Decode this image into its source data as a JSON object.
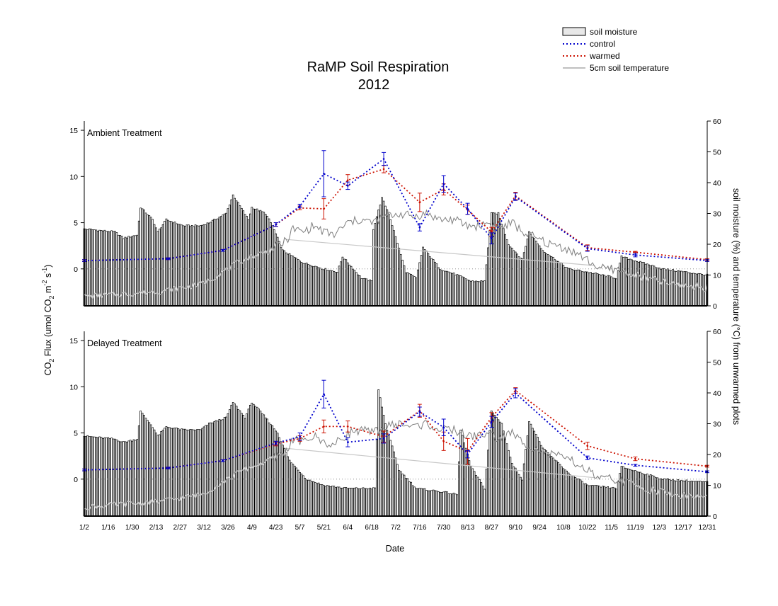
{
  "chart_data": {
    "type": "bar",
    "title": "RaMP Soil Respiration",
    "subtitle": "2012",
    "xlabel": "Date",
    "ylabel_left": "CO2 Flux (umol CO2 m-2 s-1)",
    "ylabel_right": "soil moisture (%) and temperature (°C) from unwarmed plots",
    "legend": {
      "placement": "top-right",
      "entries": [
        {
          "name": "soil moisture",
          "style": "bar",
          "color": "#e8e8e8"
        },
        {
          "name": "control",
          "style": "dotted",
          "color": "#0000cc"
        },
        {
          "name": "warmed",
          "style": "dotted",
          "color": "#cc1100"
        },
        {
          "name": "5cm soil temperature",
          "style": "line",
          "color": "#7f7f7f"
        }
      ]
    },
    "x_ticks": [
      "1/2",
      "1/16",
      "1/30",
      "2/13",
      "2/27",
      "3/12",
      "3/26",
      "4/9",
      "4/23",
      "5/7",
      "5/21",
      "6/4",
      "6/18",
      "7/2",
      "7/16",
      "7/30",
      "8/13",
      "8/27",
      "9/10",
      "9/24",
      "10/8",
      "10/22",
      "11/5",
      "11/19",
      "12/3",
      "12/17",
      "12/31"
    ],
    "x_range_doy": [
      2,
      366
    ],
    "y_left_ticks": [
      "15",
      "10",
      "5",
      "0"
    ],
    "y_left_range": [
      -4,
      16
    ],
    "y_right_ticks": [
      "60",
      "50",
      "40",
      "30",
      "20",
      "10",
      "0"
    ],
    "y_right_range": [
      0,
      60
    ],
    "zero_reference_line": true,
    "grid": false,
    "colors": {
      "control": "#0000cc",
      "warmed": "#cc1100",
      "temperature": "#7f7f7f",
      "bars": "#000000"
    },
    "panels": [
      {
        "label": "Ambient Treatment",
        "series": [
          {
            "name": "control",
            "x_doy": [
              2,
              51,
              83,
              114,
              128,
              142,
              156,
              177,
              198,
              212,
              226,
              240,
              254,
              296,
              324,
              366
            ],
            "y": [
              0.9,
              1.1,
              2.0,
              4.8,
              6.8,
              10.3,
              9.0,
              11.9,
              4.5,
              9.2,
              6.5,
              3.3,
              7.8,
              2.2,
              1.5,
              0.9
            ],
            "err": [
              0.1,
              0.1,
              0.1,
              0.2,
              0.2,
              2.5,
              0.4,
              0.7,
              0.4,
              0.9,
              0.6,
              0.6,
              0.4,
              0.3,
              0.2,
              0.1
            ]
          },
          {
            "name": "warmed",
            "x_doy": [
              2,
              51,
              83,
              114,
              128,
              142,
              156,
              177,
              198,
              212,
              226,
              240,
              254,
              296,
              324,
              366
            ],
            "y": [
              0.9,
              1.1,
              2.0,
              4.8,
              6.6,
              6.5,
              9.6,
              10.8,
              7.2,
              8.6,
              6.4,
              4.0,
              7.9,
              2.3,
              1.8,
              1.0
            ],
            "err": [
              0.1,
              0.1,
              0.1,
              0.2,
              0.2,
              1.1,
              0.6,
              0.4,
              1.0,
              0.6,
              0.5,
              0.5,
              0.4,
              0.3,
              0.1,
              0.1
            ]
          }
        ],
        "soil_moisture_nodes": [
          [
            2,
            25
          ],
          [
            20,
            24
          ],
          [
            25,
            22
          ],
          [
            33,
            23
          ],
          [
            35,
            32
          ],
          [
            42,
            28
          ],
          [
            45,
            24
          ],
          [
            50,
            28
          ],
          [
            60,
            26
          ],
          [
            70,
            26
          ],
          [
            75,
            27
          ],
          [
            85,
            30
          ],
          [
            89,
            36
          ],
          [
            98,
            28
          ],
          [
            100,
            32
          ],
          [
            108,
            30
          ],
          [
            112,
            26
          ],
          [
            118,
            18
          ],
          [
            130,
            14
          ],
          [
            142,
            12
          ],
          [
            150,
            11
          ],
          [
            153,
            16
          ],
          [
            164,
            9
          ],
          [
            170,
            8
          ],
          [
            171,
            25
          ],
          [
            176,
            35
          ],
          [
            180,
            30
          ],
          [
            190,
            11
          ],
          [
            196,
            9
          ],
          [
            200,
            19
          ],
          [
            210,
            12
          ],
          [
            220,
            10
          ],
          [
            228,
            8
          ],
          [
            236,
            8
          ],
          [
            240,
            30
          ],
          [
            244,
            30
          ],
          [
            250,
            20
          ],
          [
            258,
            15
          ],
          [
            262,
            24
          ],
          [
            270,
            18
          ],
          [
            285,
            12
          ],
          [
            296,
            11
          ],
          [
            313,
            9
          ],
          [
            316,
            16
          ],
          [
            340,
            12
          ],
          [
            366,
            10
          ]
        ],
        "temperature_nodes": [
          [
            2,
            3
          ],
          [
            30,
            4
          ],
          [
            50,
            5
          ],
          [
            70,
            7
          ],
          [
            80,
            10
          ],
          [
            95,
            15
          ],
          [
            110,
            18
          ],
          [
            120,
            21
          ],
          [
            124,
            25
          ],
          [
            130,
            24
          ],
          [
            136,
            26
          ],
          [
            142,
            24
          ],
          [
            148,
            23
          ],
          [
            156,
            27
          ],
          [
            164,
            28
          ],
          [
            170,
            27
          ],
          [
            178,
            29
          ],
          [
            186,
            30
          ],
          [
            194,
            29
          ],
          [
            202,
            30
          ],
          [
            210,
            28
          ],
          [
            218,
            28
          ],
          [
            226,
            26
          ],
          [
            232,
            26
          ],
          [
            238,
            27
          ],
          [
            244,
            25
          ],
          [
            252,
            27
          ],
          [
            258,
            24
          ],
          [
            266,
            22
          ],
          [
            274,
            20
          ],
          [
            282,
            19
          ],
          [
            290,
            17
          ],
          [
            298,
            14
          ],
          [
            304,
            12
          ],
          [
            312,
            12
          ],
          [
            318,
            11
          ],
          [
            330,
            9
          ],
          [
            345,
            7
          ],
          [
            366,
            6
          ]
        ]
      },
      {
        "label": "Delayed Treatment",
        "series": [
          {
            "name": "control",
            "x_doy": [
              2,
              51,
              83,
              114,
              128,
              142,
              156,
              177,
              198,
              212,
              226,
              240,
              254,
              296,
              324,
              366
            ],
            "y": [
              1.0,
              1.2,
              2.0,
              3.9,
              4.6,
              9.2,
              4.0,
              4.4,
              7.3,
              5.6,
              2.7,
              6.2,
              9.3,
              2.3,
              1.5,
              0.8
            ],
            "err": [
              0.1,
              0.1,
              0.1,
              0.2,
              0.4,
              1.5,
              0.5,
              0.5,
              0.5,
              0.9,
              0.4,
              0.6,
              0.5,
              0.2,
              0.1,
              0.1
            ]
          },
          {
            "name": "warmed",
            "x_doy": [
              2,
              51,
              83,
              114,
              128,
              142,
              156,
              177,
              198,
              212,
              226,
              240,
              254,
              296,
              324,
              366
            ],
            "y": [
              1.0,
              1.2,
              2.0,
              3.8,
              4.4,
              5.7,
              5.7,
              4.6,
              7.4,
              4.1,
              3.0,
              6.7,
              9.6,
              3.6,
              2.2,
              1.4
            ],
            "err": [
              0.1,
              0.1,
              0.1,
              0.2,
              0.3,
              0.7,
              0.6,
              0.6,
              0.7,
              1.0,
              1.4,
              0.5,
              0.3,
              0.4,
              0.2,
              0.1
            ]
          }
        ],
        "soil_moisture_nodes": [
          [
            2,
            26
          ],
          [
            20,
            25
          ],
          [
            25,
            24
          ],
          [
            33,
            25
          ],
          [
            35,
            34
          ],
          [
            42,
            29
          ],
          [
            45,
            26
          ],
          [
            50,
            29
          ],
          [
            60,
            28
          ],
          [
            70,
            28
          ],
          [
            75,
            30
          ],
          [
            85,
            32
          ],
          [
            89,
            37
          ],
          [
            96,
            32
          ],
          [
            100,
            37
          ],
          [
            108,
            32
          ],
          [
            115,
            27
          ],
          [
            122,
            18
          ],
          [
            132,
            12
          ],
          [
            142,
            10
          ],
          [
            156,
            9
          ],
          [
            172,
            9
          ],
          [
            174,
            41
          ],
          [
            178,
            30
          ],
          [
            186,
            15
          ],
          [
            196,
            9
          ],
          [
            210,
            8
          ],
          [
            220,
            7
          ],
          [
            222,
            28
          ],
          [
            228,
            16
          ],
          [
            236,
            9
          ],
          [
            240,
            34
          ],
          [
            246,
            30
          ],
          [
            252,
            17
          ],
          [
            258,
            12
          ],
          [
            262,
            31
          ],
          [
            270,
            22
          ],
          [
            285,
            14
          ],
          [
            296,
            10
          ],
          [
            313,
            9
          ],
          [
            316,
            16
          ],
          [
            340,
            12
          ],
          [
            366,
            11
          ]
        ],
        "temperature_nodes": [
          [
            2,
            3
          ],
          [
            30,
            4
          ],
          [
            50,
            5
          ],
          [
            70,
            7
          ],
          [
            80,
            10
          ],
          [
            95,
            15
          ],
          [
            110,
            18
          ],
          [
            120,
            21
          ],
          [
            124,
            25
          ],
          [
            130,
            24
          ],
          [
            136,
            26
          ],
          [
            142,
            24
          ],
          [
            148,
            23
          ],
          [
            156,
            27
          ],
          [
            164,
            28
          ],
          [
            170,
            27
          ],
          [
            178,
            29
          ],
          [
            186,
            30
          ],
          [
            194,
            29
          ],
          [
            202,
            30
          ],
          [
            210,
            28
          ],
          [
            218,
            28
          ],
          [
            226,
            26
          ],
          [
            232,
            26
          ],
          [
            238,
            27
          ],
          [
            244,
            25
          ],
          [
            252,
            27
          ],
          [
            258,
            24
          ],
          [
            266,
            22
          ],
          [
            274,
            20
          ],
          [
            282,
            19
          ],
          [
            290,
            17
          ],
          [
            298,
            14
          ],
          [
            304,
            12
          ],
          [
            312,
            12
          ],
          [
            318,
            11
          ],
          [
            330,
            9
          ],
          [
            345,
            7
          ],
          [
            366,
            6
          ]
        ]
      }
    ]
  }
}
